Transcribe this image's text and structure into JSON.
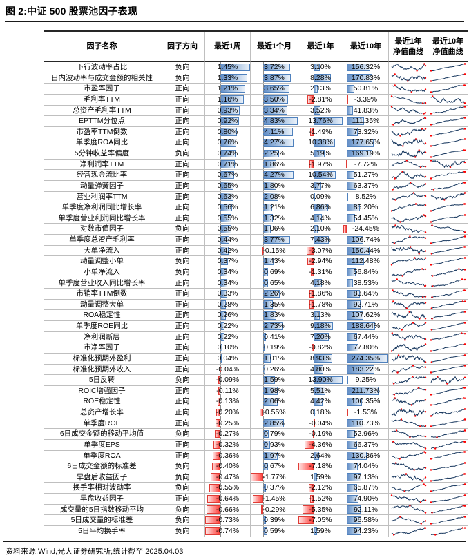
{
  "title": "图 2:中证 500 股票池因子表现",
  "source_note": "资料来源:Wind,光大证券研究所;统计截至 2025.04.03",
  "table": {
    "headers": {
      "name": "因子名称",
      "direction": "因子方向",
      "w1": "最近1周",
      "m1": "最近1个月",
      "y1": "最近1年",
      "y10": "最近10年",
      "nav1": "最近1年\n净值曲线",
      "nav10": "最近10年\n净值曲线"
    }
  },
  "colors": {
    "bar_positive": "#638EC6",
    "bar_negative": "#FF403A",
    "sparkline": "#17375E",
    "marker": "#FF0000"
  },
  "chart_data": {
    "type": "table",
    "value_format": "percent",
    "columns": [
      "因子名称",
      "因子方向",
      "最近1周",
      "最近1个月",
      "最近1年",
      "最近10年",
      "最近1年净值曲线",
      "最近10年净值曲线"
    ],
    "bar_columns_note": "最近1周/最近1个月/最近1年/最近10年 use Excel-style gradient data bars, blue positive, red negative, dashed zero axis; last two columns are navy sparklines with red high/low/last markers",
    "rows": [
      [
        "下行波动率占比",
        "负向",
        1.45,
        3.72,
        3.1,
        156.32
      ],
      [
        "日内波动率与成交金额的相关性",
        "负向",
        1.33,
        3.87,
        8.28,
        170.83
      ],
      [
        "市盈率因子",
        "正向",
        1.21,
        3.65,
        2.13,
        50.81
      ],
      [
        "毛利率TTM",
        "正向",
        1.16,
        3.5,
        -2.81,
        -3.39
      ],
      [
        "总资产毛利率TTM",
        "正向",
        0.93,
        3.34,
        3.52,
        41.83
      ],
      [
        "EPTTM分位点",
        "正向",
        0.92,
        4.83,
        13.76,
        111.35
      ],
      [
        "市盈率TTM倒数",
        "正向",
        0.8,
        4.11,
        -1.49,
        73.32
      ],
      [
        "单季度ROA同比",
        "正向",
        0.76,
        4.27,
        10.38,
        177.65
      ],
      [
        "5分钟收益率偏度",
        "负向",
        0.74,
        2.25,
        5.19,
        169.19
      ],
      [
        "净利润率TTM",
        "正向",
        0.71,
        1.86,
        -1.97,
        -7.72
      ],
      [
        "经营现金流比率",
        "正向",
        0.67,
        4.27,
        10.54,
        51.27
      ],
      [
        "动量弹簧因子",
        "正向",
        0.65,
        1.8,
        3.77,
        63.37
      ],
      [
        "营业利润率TTM",
        "正向",
        0.63,
        2.08,
        0.09,
        8.52
      ],
      [
        "单季度净利润同比增长率",
        "正向",
        0.56,
        1.21,
        6.86,
        85.2
      ],
      [
        "单季度营业利润同比增长率",
        "正向",
        0.55,
        1.32,
        4.14,
        54.45
      ],
      [
        "对数市值因子",
        "负向",
        0.55,
        1.06,
        2.1,
        -24.45
      ],
      [
        "单季度总资产毛利率",
        "正向",
        0.44,
        3.77,
        7.43,
        106.74
      ],
      [
        "大单净流入",
        "正向",
        0.42,
        -0.15,
        -3.07,
        150.44
      ],
      [
        "动量调整小单",
        "负向",
        0.37,
        1.43,
        -2.94,
        112.48
      ],
      [
        "小单净流入",
        "负向",
        0.34,
        0.69,
        -1.31,
        56.84
      ],
      [
        "单季度营业收入同比增长率",
        "正向",
        0.34,
        0.65,
        4.18,
        38.53
      ],
      [
        "市销率TTM倒数",
        "正向",
        0.33,
        2.26,
        -1.86,
        83.64
      ],
      [
        "动量调整大单",
        "正向",
        0.28,
        1.35,
        -1.78,
        92.71
      ],
      [
        "ROA稳定性",
        "正向",
        0.26,
        1.83,
        3.13,
        107.62
      ],
      [
        "单季度ROE同比",
        "正向",
        0.22,
        2.73,
        9.18,
        188.64
      ],
      [
        "净利润断层",
        "正向",
        0.22,
        0.41,
        7.2,
        67.44
      ],
      [
        "市净率因子",
        "正向",
        0.1,
        0.19,
        -0.82,
        77.8
      ],
      [
        "标准化预期外盈利",
        "正向",
        0.04,
        1.01,
        8.93,
        274.35
      ],
      [
        "标准化预期外收入",
        "正向",
        -0.04,
        0.26,
        4.8,
        183.22
      ],
      [
        "5日反转",
        "负向",
        -0.09,
        1.59,
        13.9,
        9.25
      ],
      [
        "ROIC增强因子",
        "正向",
        -0.11,
        1.98,
        5.51,
        211.73
      ],
      [
        "ROE稳定性",
        "正向",
        -0.13,
        2.06,
        4.42,
        100.35
      ],
      [
        "总资产增长率",
        "正向",
        -0.2,
        -0.55,
        0.18,
        -1.53
      ],
      [
        "单季度ROE",
        "正向",
        -0.25,
        2.85,
        -0.04,
        110.73
      ],
      [
        "6日成交金额的移动平均值",
        "负向",
        -0.27,
        0.79,
        -0.19,
        52.96
      ],
      [
        "单季度EPS",
        "正向",
        -0.32,
        0.93,
        -4.36,
        66.37
      ],
      [
        "单季度ROA",
        "正向",
        -0.36,
        1.97,
        2.64,
        130.36
      ],
      [
        "6日成交金额的标准差",
        "负向",
        -0.4,
        0.67,
        -7.18,
        74.04
      ],
      [
        "早盘后收益因子",
        "负向",
        -0.47,
        -1.77,
        1.59,
        97.13
      ],
      [
        "换手率相对波动率",
        "负向",
        -0.55,
        0.37,
        -2.12,
        65.87
      ],
      [
        "早盘收益因子",
        "正向",
        -0.64,
        -1.45,
        -1.52,
        74.9
      ],
      [
        "成交量的5日指数移动平均",
        "负向",
        -0.66,
        -0.29,
        -5.35,
        92.11
      ],
      [
        "5日成交量的标准差",
        "负向",
        -0.73,
        0.39,
        -7.05,
        96.58
      ],
      [
        "5日平均换手率",
        "负向",
        -0.74,
        0.59,
        1.59,
        94.23
      ]
    ]
  }
}
